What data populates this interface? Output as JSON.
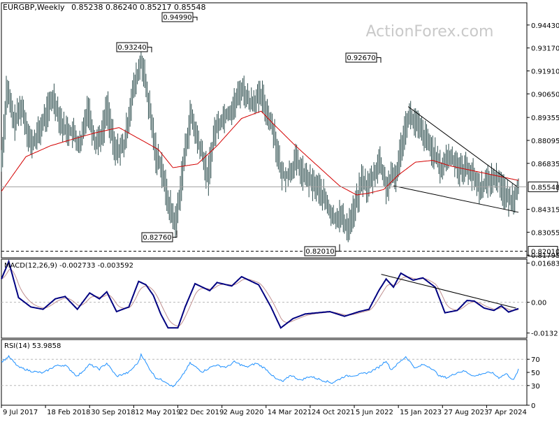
{
  "chart_data": {
    "type": "line",
    "symbol": "EURGBP",
    "timeframe": "Weekly",
    "header_ohlc": "0.85238 0.86240 0.85217 0.85548",
    "watermark": "ActionForex.com",
    "main_ylim": [
      0.8165,
      0.9565
    ],
    "price_axis_ticks": [
      "0.94430",
      "0.93170",
      "0.91910",
      "0.90650",
      "0.89355",
      "0.88095",
      "0.86835",
      "0.85548",
      "0.84315",
      "0.83055",
      "0.82010",
      "0.81795"
    ],
    "last_price_label": "0.85548",
    "support_line_label": "0.82010",
    "support_level": 0.8201,
    "x_tick_labels": [
      "9 Jul 2017",
      "18 Feb 2018",
      "30 Sep 2018",
      "12 May 2019",
      "22 Dec 2019",
      "2 Aug 2020",
      "14 Mar 2021",
      "24 Oct 2021",
      "5 Jun 2022",
      "15 Jan 2023",
      "27 Aug 2023",
      "7 Apr 2024"
    ],
    "n_weeks": 360,
    "price_anchors": [
      [
        0,
        0.87
      ],
      [
        4,
        0.91
      ],
      [
        10,
        0.89
      ],
      [
        16,
        0.9
      ],
      [
        24,
        0.878
      ],
      [
        30,
        0.885
      ],
      [
        36,
        0.895
      ],
      [
        42,
        0.905
      ],
      [
        50,
        0.888
      ],
      [
        58,
        0.885
      ],
      [
        64,
        0.877
      ],
      [
        70,
        0.9
      ],
      [
        76,
        0.88
      ],
      [
        82,
        0.885
      ],
      [
        86,
        0.9
      ],
      [
        92,
        0.875
      ],
      [
        100,
        0.878
      ],
      [
        106,
        0.905
      ],
      [
        114,
        0.925
      ],
      [
        120,
        0.9
      ],
      [
        126,
        0.872
      ],
      [
        130,
        0.868
      ],
      [
        134,
        0.852
      ],
      [
        138,
        0.842
      ],
      [
        142,
        0.835
      ],
      [
        147,
        0.862
      ],
      [
        154,
        0.895
      ],
      [
        158,
        0.885
      ],
      [
        164,
        0.872
      ],
      [
        168,
        0.86
      ],
      [
        174,
        0.887
      ],
      [
        182,
        0.895
      ],
      [
        188,
        0.898
      ],
      [
        196,
        0.91
      ],
      [
        202,
        0.902
      ],
      [
        212,
        0.905
      ],
      [
        222,
        0.886
      ],
      [
        228,
        0.862
      ],
      [
        234,
        0.862
      ],
      [
        240,
        0.87
      ],
      [
        246,
        0.862
      ],
      [
        252,
        0.858
      ],
      [
        258,
        0.855
      ],
      [
        264,
        0.848
      ],
      [
        270,
        0.838
      ],
      [
        276,
        0.84
      ],
      [
        282,
        0.833
      ],
      [
        286,
        0.84
      ],
      [
        290,
        0.848
      ],
      [
        294,
        0.86
      ],
      [
        298,
        0.855
      ],
      [
        304,
        0.862
      ],
      [
        308,
        0.87
      ],
      [
        314,
        0.855
      ],
      [
        318,
        0.86
      ],
      [
        322,
        0.862
      ],
      [
        328,
        0.885
      ],
      [
        332,
        0.895
      ],
      [
        338,
        0.89
      ],
      [
        344,
        0.884
      ],
      [
        352,
        0.875
      ],
      [
        358,
        0.865
      ],
      [
        364,
        0.872
      ],
      [
        370,
        0.87
      ],
      [
        374,
        0.865
      ],
      [
        380,
        0.866
      ],
      [
        384,
        0.862
      ],
      [
        390,
        0.855
      ],
      [
        396,
        0.858
      ],
      [
        400,
        0.86
      ],
      [
        406,
        0.86
      ],
      [
        410,
        0.852
      ],
      [
        414,
        0.848
      ],
      [
        418,
        0.85
      ],
      [
        422,
        0.858
      ]
    ],
    "ma_anchors": [
      [
        0,
        0.853
      ],
      [
        20,
        0.872
      ],
      [
        40,
        0.878
      ],
      [
        60,
        0.882
      ],
      [
        76,
        0.885
      ],
      [
        96,
        0.888
      ],
      [
        112,
        0.882
      ],
      [
        128,
        0.876
      ],
      [
        140,
        0.866
      ],
      [
        160,
        0.868
      ],
      [
        176,
        0.878
      ],
      [
        196,
        0.893
      ],
      [
        212,
        0.897
      ],
      [
        222,
        0.89
      ],
      [
        240,
        0.878
      ],
      [
        258,
        0.867
      ],
      [
        276,
        0.856
      ],
      [
        290,
        0.851
      ],
      [
        300,
        0.852
      ],
      [
        312,
        0.854
      ],
      [
        324,
        0.862
      ],
      [
        338,
        0.869
      ],
      [
        352,
        0.87
      ],
      [
        366,
        0.867
      ],
      [
        380,
        0.865
      ],
      [
        394,
        0.863
      ],
      [
        408,
        0.861
      ],
      [
        422,
        0.859
      ]
    ],
    "price_labels": [
      {
        "text": "0.94990",
        "value": 0.9499
      },
      {
        "text": "0.93240",
        "value": 0.9324
      },
      {
        "text": "0.92670",
        "value": 0.9267
      },
      {
        "text": "0.82760",
        "value": 0.8276
      },
      {
        "text": "0.82010",
        "value": 0.8201
      }
    ],
    "macd": {
      "label": "MACD(12,26,9) -0.002733 -0.003592",
      "ylim": [
        -0.0154,
        0.0185
      ],
      "ticks": [
        "0.016838",
        "0.00",
        "-0.0132"
      ],
      "anchors": [
        [
          0,
          0.01
        ],
        [
          6,
          0.0175
        ],
        [
          14,
          0.002
        ],
        [
          24,
          -0.002
        ],
        [
          34,
          -0.003
        ],
        [
          44,
          0.0015
        ],
        [
          52,
          0.0025
        ],
        [
          62,
          -0.003
        ],
        [
          72,
          0.004
        ],
        [
          80,
          0.0015
        ],
        [
          86,
          0.0045
        ],
        [
          94,
          -0.004
        ],
        [
          104,
          -0.002
        ],
        [
          112,
          0.009
        ],
        [
          118,
          0.0075
        ],
        [
          124,
          0.003
        ],
        [
          130,
          -0.005
        ],
        [
          136,
          -0.011
        ],
        [
          144,
          -0.011
        ],
        [
          150,
          -0.002
        ],
        [
          158,
          0.008
        ],
        [
          170,
          0.005
        ],
        [
          176,
          0.0085
        ],
        [
          188,
          0.007
        ],
        [
          196,
          0.011
        ],
        [
          210,
          0.0075
        ],
        [
          220,
          -0.002
        ],
        [
          228,
          -0.011
        ],
        [
          238,
          -0.007
        ],
        [
          248,
          -0.005
        ],
        [
          258,
          -0.0045
        ],
        [
          268,
          -0.004
        ],
        [
          280,
          -0.006
        ],
        [
          292,
          -0.004
        ],
        [
          300,
          -0.003
        ],
        [
          308,
          0.005
        ],
        [
          314,
          0.01
        ],
        [
          320,
          0.0065
        ],
        [
          326,
          0.0125
        ],
        [
          336,
          0.0095
        ],
        [
          344,
          0.0105
        ],
        [
          354,
          0.0065
        ],
        [
          362,
          -0.0045
        ],
        [
          372,
          -0.0035
        ],
        [
          380,
          0.0008
        ],
        [
          386,
          0.0005
        ],
        [
          394,
          -0.0025
        ],
        [
          402,
          -0.0035
        ],
        [
          408,
          -0.0015
        ],
        [
          414,
          -0.0042
        ],
        [
          422,
          -0.0027
        ]
      ],
      "trendline": [
        [
          310,
          0.012
        ],
        [
          420,
          -0.0025
        ]
      ]
    },
    "rsi": {
      "label": "RSI(14) 53.9858",
      "ylim": [
        0,
        100
      ],
      "ticks": [
        "70",
        "50",
        "30",
        "0"
      ],
      "levels": [
        70,
        30
      ],
      "anchors": [
        [
          0,
          66
        ],
        [
          6,
          74
        ],
        [
          14,
          58
        ],
        [
          24,
          52
        ],
        [
          34,
          49
        ],
        [
          44,
          60
        ],
        [
          52,
          61
        ],
        [
          62,
          44
        ],
        [
          72,
          62
        ],
        [
          80,
          55
        ],
        [
          86,
          64
        ],
        [
          94,
          44
        ],
        [
          104,
          50
        ],
        [
          112,
          66
        ],
        [
          114,
          78
        ],
        [
          120,
          58
        ],
        [
          126,
          42
        ],
        [
          134,
          36
        ],
        [
          140,
          28
        ],
        [
          146,
          40
        ],
        [
          154,
          64
        ],
        [
          164,
          51
        ],
        [
          174,
          61
        ],
        [
          184,
          58
        ],
        [
          190,
          66
        ],
        [
          200,
          58
        ],
        [
          208,
          64
        ],
        [
          216,
          55
        ],
        [
          224,
          40
        ],
        [
          230,
          36
        ],
        [
          236,
          46
        ],
        [
          244,
          38
        ],
        [
          252,
          44
        ],
        [
          262,
          38
        ],
        [
          270,
          34
        ],
        [
          280,
          44
        ],
        [
          290,
          46
        ],
        [
          300,
          50
        ],
        [
          308,
          58
        ],
        [
          314,
          68
        ],
        [
          318,
          54
        ],
        [
          324,
          64
        ],
        [
          330,
          74
        ],
        [
          338,
          56
        ],
        [
          344,
          62
        ],
        [
          350,
          58
        ],
        [
          358,
          44
        ],
        [
          364,
          42
        ],
        [
          372,
          50
        ],
        [
          378,
          52
        ],
        [
          386,
          44
        ],
        [
          392,
          48
        ],
        [
          400,
          50
        ],
        [
          406,
          42
        ],
        [
          412,
          48
        ],
        [
          418,
          38
        ],
        [
          422,
          54
        ]
      ]
    },
    "falling_wedge": {
      "upper": [
        [
          332,
          0.8995
        ],
        [
          422,
          0.855
        ]
      ],
      "lower": [
        [
          320,
          0.856
        ],
        [
          422,
          0.8415
        ]
      ]
    },
    "colors": {
      "price": "#2f4f4f",
      "ma": "#d40000",
      "macd": "#000080",
      "signal": "#c09090",
      "rsi": "#1e90ff",
      "trend": "#000000",
      "grid": "#b8b8b8"
    }
  }
}
